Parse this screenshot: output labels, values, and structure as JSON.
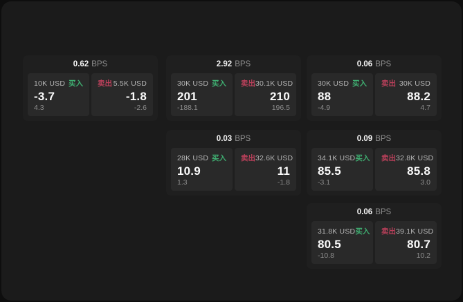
{
  "labels": {
    "bps": "BPS",
    "buy": "买入",
    "sell": "卖出"
  },
  "colors": {
    "surface": "#1b1b1b",
    "card": "#1f1f1f",
    "panel": "#292929",
    "buy_green": "#3fae71",
    "sell_red": "#b9405a"
  },
  "cards": [
    {
      "bps": "0.62",
      "grid": {
        "row": 1,
        "col": 1
      },
      "buy": {
        "amount": "10K USD",
        "value": "-3.7",
        "sub": "4.3"
      },
      "sell": {
        "amount": "5.5K USD",
        "value": "-1.8",
        "sub": "-2.6"
      }
    },
    {
      "bps": "2.92",
      "grid": {
        "row": 1,
        "col": 2
      },
      "buy": {
        "amount": "30K USD",
        "value": "201",
        "sub": "-188.1"
      },
      "sell": {
        "amount": "30.1K USD",
        "value": "210",
        "sub": "196.5"
      }
    },
    {
      "bps": "0.06",
      "grid": {
        "row": 1,
        "col": 3
      },
      "buy": {
        "amount": "30K USD",
        "value": "88",
        "sub": "-4.9"
      },
      "sell": {
        "amount": "30K USD",
        "value": "88.2",
        "sub": "4.7"
      }
    },
    {
      "bps": "0.03",
      "grid": {
        "row": 2,
        "col": 2
      },
      "buy": {
        "amount": "28K USD",
        "value": "10.9",
        "sub": "1.3"
      },
      "sell": {
        "amount": "32.6K USD",
        "value": "11",
        "sub": "-1.8"
      }
    },
    {
      "bps": "0.09",
      "grid": {
        "row": 2,
        "col": 3
      },
      "buy": {
        "amount": "34.1K USD",
        "value": "85.5",
        "sub": "-3.1"
      },
      "sell": {
        "amount": "32.8K USD",
        "value": "85.8",
        "sub": "3.0"
      }
    },
    {
      "bps": "0.06",
      "grid": {
        "row": 3,
        "col": 3
      },
      "buy": {
        "amount": "31.8K USD",
        "value": "80.5",
        "sub": "-10.8"
      },
      "sell": {
        "amount": "39.1K USD",
        "value": "80.7",
        "sub": "10.2"
      }
    }
  ]
}
